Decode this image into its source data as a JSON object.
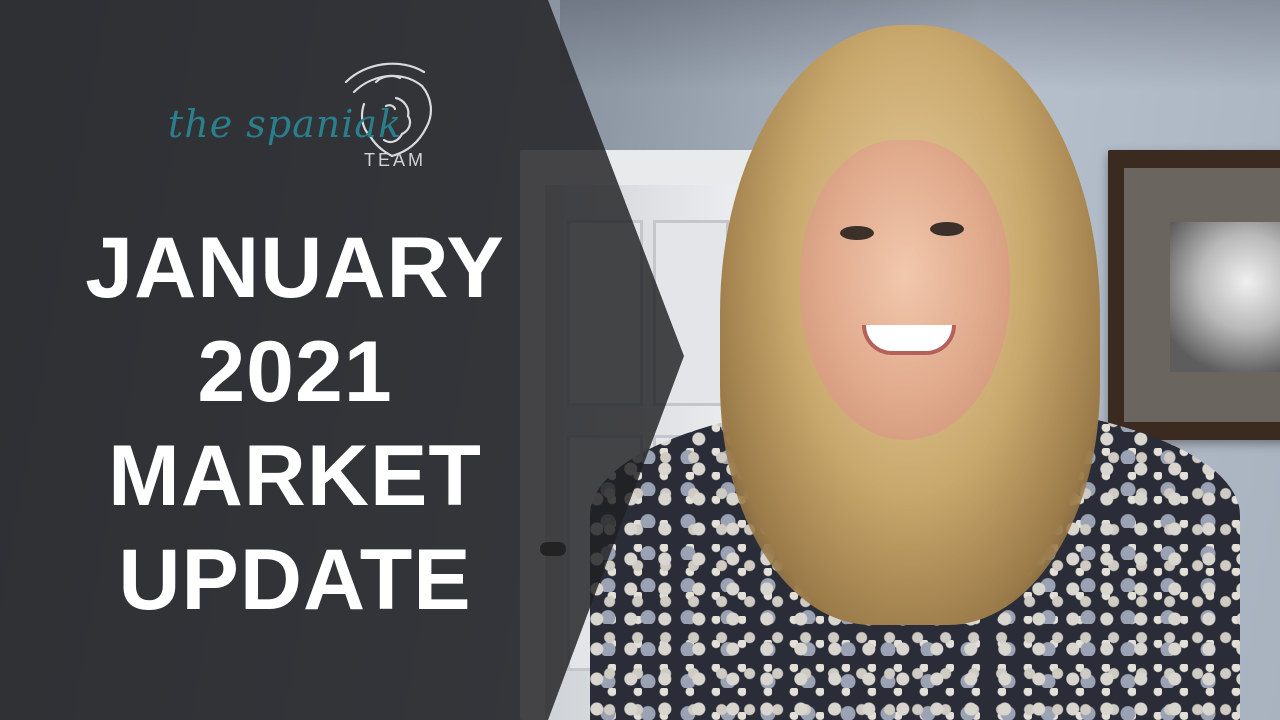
{
  "brand": {
    "name_primary": "the spaniak",
    "name_secondary": "TEAM",
    "logo_icon": "lion-icon",
    "primary_color": "#2a7f8c"
  },
  "headline": {
    "lines": [
      "JANUARY",
      "2021",
      "MARKET",
      "UPDATE"
    ]
  },
  "colors": {
    "overlay": "#202022",
    "headline_text": "#ffffff"
  }
}
